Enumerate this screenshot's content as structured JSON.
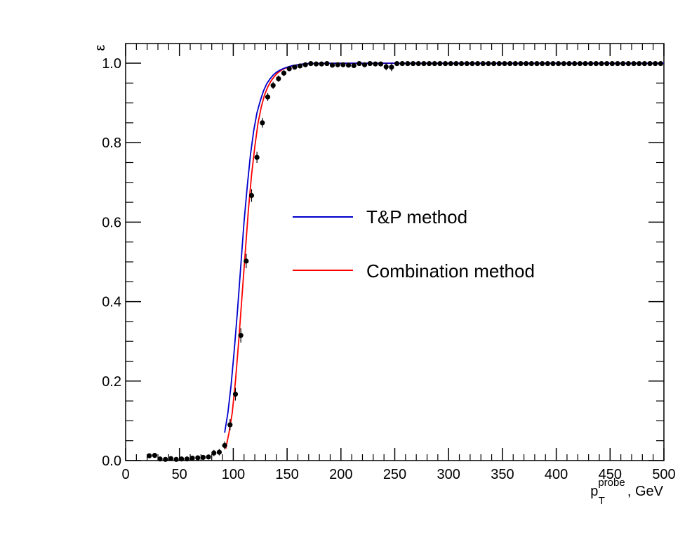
{
  "chart_data": {
    "type": "scatter",
    "title": "",
    "xlabel": {
      "main": "p",
      "sub": "T",
      "sup": "probe",
      "suffix": ", GeV"
    },
    "ylabel": "ε",
    "xlim": [
      0,
      500
    ],
    "ylim": [
      0,
      1.05
    ],
    "x_ticks": [
      0,
      50,
      100,
      150,
      200,
      250,
      300,
      350,
      400,
      450,
      500
    ],
    "x_tick_labels": [
      "0",
      "50",
      "100",
      "150",
      "200",
      "250",
      "300",
      "350",
      "400",
      "450",
      "500"
    ],
    "y_ticks": [
      0,
      0.2,
      0.4,
      0.6,
      0.8,
      1.0
    ],
    "y_tick_labels": [
      "0.0",
      "0.2",
      "0.4",
      "0.6",
      "0.8",
      "1.0"
    ],
    "grid": false,
    "legend_placement": "center",
    "points": {
      "x": [
        22,
        27,
        32,
        37,
        42,
        47,
        52,
        57,
        62,
        67,
        72,
        77,
        82,
        87,
        92,
        97,
        102,
        107,
        112,
        117,
        122,
        127,
        132,
        137,
        142,
        147,
        152,
        157,
        162,
        167,
        172,
        177,
        182,
        187,
        192,
        197,
        202,
        207,
        212,
        217,
        222,
        227,
        232,
        237,
        242,
        247,
        252,
        257,
        262,
        267,
        272,
        277,
        282,
        287,
        292,
        297,
        302,
        307,
        312,
        317,
        322,
        327,
        332,
        337,
        342,
        347,
        352,
        357,
        362,
        367,
        372,
        377,
        382,
        387,
        392,
        397,
        402,
        407,
        412,
        417,
        422,
        427,
        432,
        437,
        442,
        447,
        452,
        457,
        462,
        467,
        472,
        477,
        482,
        487,
        492,
        497
      ],
      "y": [
        0.012,
        0.013,
        0.004,
        0.003,
        0.005,
        0.003,
        0.004,
        0.004,
        0.006,
        0.007,
        0.008,
        0.009,
        0.019,
        0.021,
        0.038,
        0.09,
        0.167,
        0.315,
        0.502,
        0.667,
        0.763,
        0.85,
        0.915,
        0.944,
        0.961,
        0.975,
        0.986,
        0.99,
        0.993,
        0.996,
        0.999,
        0.998,
        0.998,
        0.999,
        0.995,
        0.996,
        0.996,
        0.995,
        0.994,
        0.999,
        0.996,
        0.999,
        0.998,
        0.998,
        0.991,
        0.99,
        0.999,
        0.999,
        0.999,
        0.999,
        0.999,
        0.999,
        0.999,
        0.999,
        0.999,
        0.999,
        0.999,
        0.999,
        0.999,
        0.999,
        0.999,
        0.999,
        0.999,
        0.999,
        0.999,
        0.999,
        0.999,
        0.999,
        0.999,
        0.999,
        0.999,
        0.999,
        0.999,
        0.999,
        0.999,
        0.999,
        0.999,
        0.999,
        0.999,
        0.999,
        0.999,
        0.999,
        0.999,
        0.999,
        0.999,
        0.999,
        0.999,
        0.999,
        0.999,
        0.999,
        0.999,
        0.999,
        0.999,
        0.999,
        0.999,
        0.999
      ],
      "yerr": [
        0.006,
        0.006,
        0.004,
        0.003,
        0.004,
        0.003,
        0.004,
        0.004,
        0.005,
        0.005,
        0.005,
        0.005,
        0.008,
        0.008,
        0.01,
        0.014,
        0.016,
        0.018,
        0.018,
        0.016,
        0.014,
        0.012,
        0.01,
        0.009,
        0.008,
        0.007,
        0.006,
        0.005,
        0.005,
        0.004,
        0.003,
        0.003,
        0.003,
        0.003,
        0.004,
        0.004,
        0.004,
        0.005,
        0.005,
        0.003,
        0.004,
        0.003,
        0.004,
        0.004,
        0.009,
        0.01,
        0.003,
        0.003,
        0.003,
        0.003,
        0.003,
        0.003,
        0.003,
        0.003,
        0.003,
        0.003,
        0.003,
        0.003,
        0.003,
        0.003,
        0.003,
        0.003,
        0.003,
        0.003,
        0.003,
        0.003,
        0.003,
        0.003,
        0.003,
        0.003,
        0.003,
        0.003,
        0.003,
        0.003,
        0.003,
        0.003,
        0.003,
        0.003,
        0.003,
        0.003,
        0.003,
        0.003,
        0.003,
        0.003,
        0.003,
        0.003,
        0.003,
        0.003,
        0.003,
        0.003,
        0.003,
        0.003,
        0.003,
        0.003,
        0.003,
        0.003
      ]
    },
    "series": [
      {
        "name": "T&P method",
        "color": "#0000cc",
        "x": [
          92,
          95,
          98,
          101,
          104,
          107,
          110,
          113,
          116,
          119,
          122,
          125,
          128,
          131,
          134,
          137,
          140,
          143,
          146,
          150,
          155,
          160,
          165,
          170,
          180,
          200,
          250,
          300,
          400,
          500
        ],
        "y": [
          0.07,
          0.12,
          0.19,
          0.28,
          0.38,
          0.49,
          0.6,
          0.69,
          0.77,
          0.83,
          0.875,
          0.905,
          0.93,
          0.948,
          0.96,
          0.97,
          0.977,
          0.982,
          0.986,
          0.99,
          0.994,
          0.996,
          0.998,
          0.999,
          0.9995,
          1.0,
          1.0,
          1.0,
          1.0,
          1.0
        ]
      },
      {
        "name": "Combination method",
        "color": "#ff0000",
        "x": [
          93,
          96,
          99,
          102,
          105,
          108,
          111,
          114,
          117,
          120,
          123,
          126,
          129,
          132,
          135,
          138,
          141,
          144,
          147,
          150,
          155,
          160,
          165,
          170,
          180,
          200,
          250,
          300,
          400,
          500
        ],
        "y": [
          0.03,
          0.07,
          0.12,
          0.2,
          0.3,
          0.41,
          0.52,
          0.63,
          0.72,
          0.79,
          0.85,
          0.89,
          0.92,
          0.94,
          0.955,
          0.966,
          0.975,
          0.981,
          0.986,
          0.989,
          0.993,
          0.996,
          0.998,
          0.999,
          0.9995,
          1.0,
          1.0,
          1.0,
          1.0,
          1.0
        ]
      }
    ]
  }
}
